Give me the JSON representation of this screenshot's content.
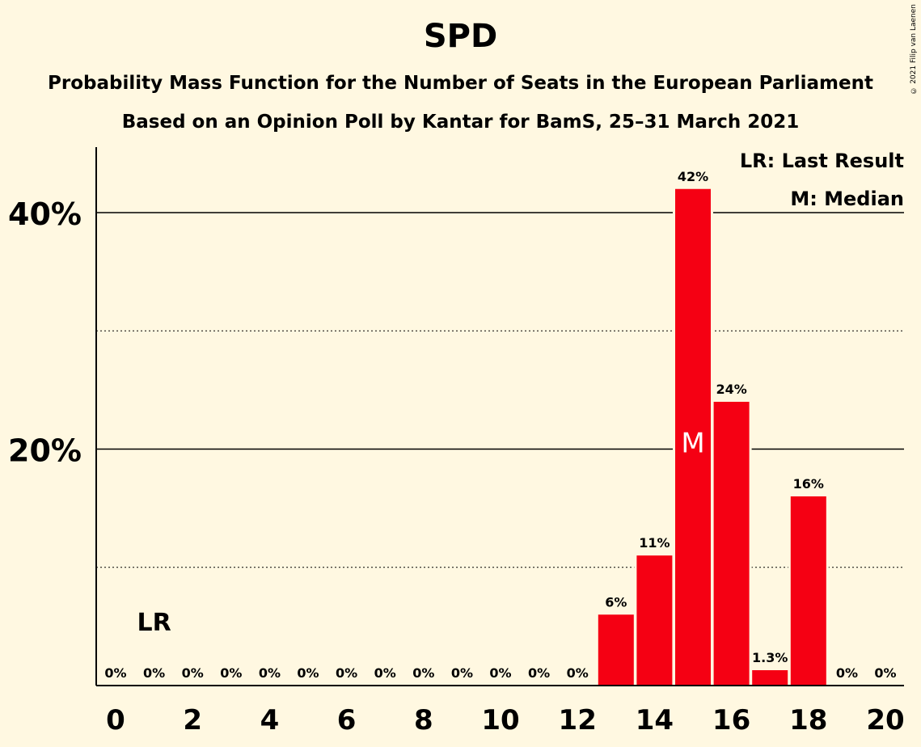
{
  "copyright": "© 2021 Filip van Laenen",
  "legend": {
    "lr": "LR: Last Result",
    "median": "M: Median"
  },
  "colors": {
    "bar": "#F50013",
    "background": "#FFF8E1"
  },
  "chart_data": {
    "type": "bar",
    "title": "SPD",
    "subtitle": "Probability Mass Function for the Number of Seats in the European Parliament",
    "subtitle2": "Based on an Opinion Poll by Kantar for BamS, 25–31 March 2021",
    "x": [
      0,
      1,
      2,
      3,
      4,
      5,
      6,
      7,
      8,
      9,
      10,
      11,
      12,
      13,
      14,
      15,
      16,
      17,
      18,
      19,
      20
    ],
    "values": [
      0,
      0,
      0,
      0,
      0,
      0,
      0,
      0,
      0,
      0,
      0,
      0,
      0,
      6,
      11,
      42,
      24,
      1.3,
      16,
      0,
      0
    ],
    "value_labels": [
      "0%",
      "0%",
      "0%",
      "0%",
      "0%",
      "0%",
      "0%",
      "0%",
      "0%",
      "0%",
      "0%",
      "0%",
      "0%",
      "6%",
      "11%",
      "42%",
      "24%",
      "1.3%",
      "16%",
      "0%",
      "0%"
    ],
    "x_tick_labels": [
      "0",
      "2",
      "4",
      "6",
      "8",
      "10",
      "12",
      "14",
      "16",
      "18",
      "20"
    ],
    "y_tick_labels": [
      "20%",
      "40%"
    ],
    "ylim": [
      0,
      45
    ],
    "last_result": {
      "seat": 1,
      "label": "LR"
    },
    "median": {
      "seat": 15,
      "label": "M"
    }
  }
}
